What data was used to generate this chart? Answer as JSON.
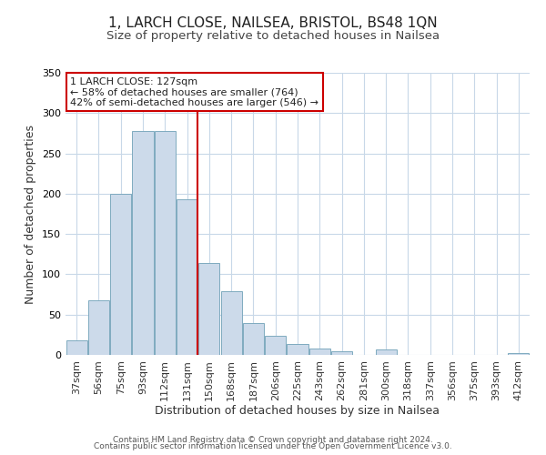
{
  "title_line1": "1, LARCH CLOSE, NAILSEA, BRISTOL, BS48 1QN",
  "title_line2": "Size of property relative to detached houses in Nailsea",
  "xlabel": "Distribution of detached houses by size in Nailsea",
  "ylabel": "Number of detached properties",
  "bar_labels": [
    "37sqm",
    "56sqm",
    "75sqm",
    "93sqm",
    "112sqm",
    "131sqm",
    "150sqm",
    "168sqm",
    "187sqm",
    "206sqm",
    "225sqm",
    "243sqm",
    "262sqm",
    "281sqm",
    "300sqm",
    "318sqm",
    "337sqm",
    "356sqm",
    "375sqm",
    "393sqm",
    "412sqm"
  ],
  "bar_values": [
    18,
    68,
    200,
    278,
    278,
    193,
    114,
    79,
    40,
    24,
    14,
    8,
    5,
    0,
    7,
    0,
    0,
    0,
    0,
    0,
    2
  ],
  "bar_color": "#ccdaea",
  "bar_edge_color": "#7eaabf",
  "highlight_bar_index": 5,
  "highlight_line_color": "#cc0000",
  "ylim": [
    0,
    350
  ],
  "yticks": [
    0,
    50,
    100,
    150,
    200,
    250,
    300,
    350
  ],
  "annotation_title": "1 LARCH CLOSE: 127sqm",
  "annotation_line1": "← 58% of detached houses are smaller (764)",
  "annotation_line2": "42% of semi-detached houses are larger (546) →",
  "annotation_box_color": "#ffffff",
  "annotation_box_edge": "#cc0000",
  "footer_line1": "Contains HM Land Registry data © Crown copyright and database right 2024.",
  "footer_line2": "Contains public sector information licensed under the Open Government Licence v3.0.",
  "background_color": "#ffffff",
  "grid_color": "#c8d8e8",
  "title_fontsize": 11,
  "subtitle_fontsize": 9.5,
  "axis_label_fontsize": 9,
  "tick_fontsize": 8,
  "footer_fontsize": 6.5,
  "annotation_fontsize": 8
}
